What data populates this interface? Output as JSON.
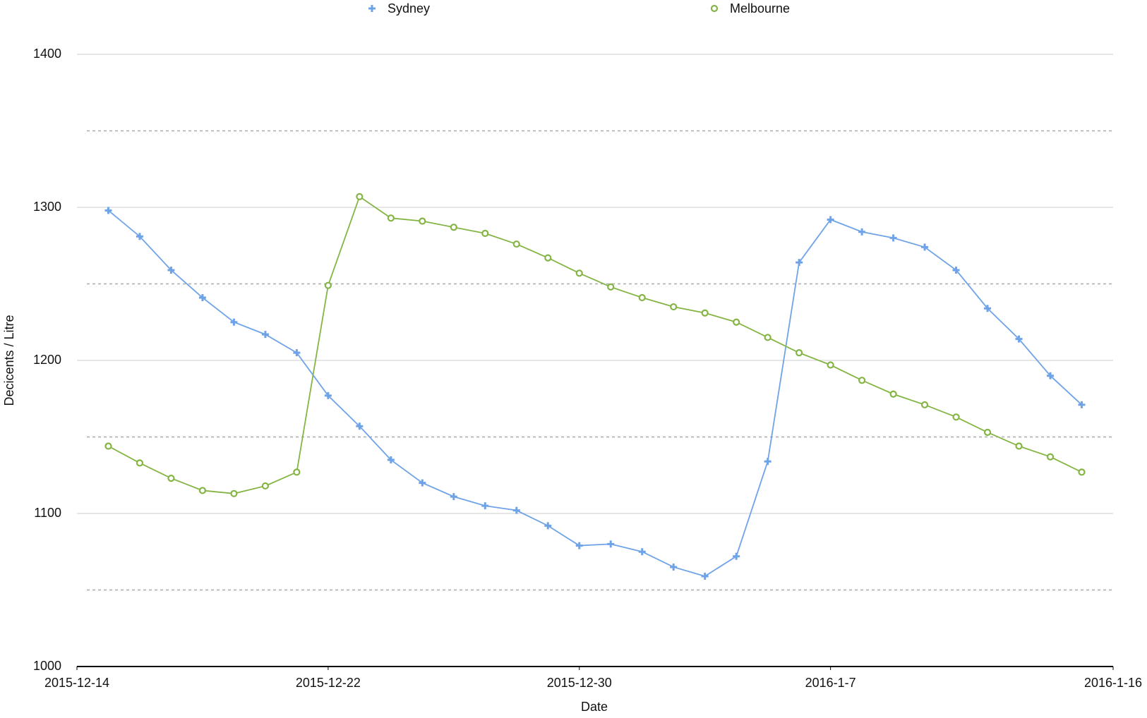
{
  "chart_data": {
    "type": "line",
    "x_label": "Date",
    "y_label": "Decicents / Litre",
    "x": [
      "2015-12-15",
      "2015-12-16",
      "2015-12-17",
      "2015-12-18",
      "2015-12-19",
      "2015-12-20",
      "2015-12-21",
      "2015-12-22",
      "2015-12-23",
      "2015-12-24",
      "2015-12-25",
      "2015-12-26",
      "2015-12-27",
      "2015-12-28",
      "2015-12-29",
      "2015-12-30",
      "2015-12-31",
      "2016-1-1",
      "2016-1-2",
      "2016-1-3",
      "2016-1-4",
      "2016-1-5",
      "2016-1-6",
      "2016-1-7",
      "2016-1-8",
      "2016-1-9",
      "2016-1-10",
      "2016-1-11",
      "2016-1-12",
      "2016-1-13",
      "2016-1-14",
      "2016-1-15"
    ],
    "series": [
      {
        "name": "Sydney",
        "color": "#6fa3e8",
        "marker": "plus",
        "values": [
          1298,
          1281,
          1259,
          1241,
          1225,
          1217,
          1205,
          1177,
          1157,
          1135,
          1120,
          1111,
          1105,
          1102,
          1092,
          1079,
          1080,
          1075,
          1065,
          1059,
          1072,
          1134,
          1264,
          1292,
          1284,
          1280,
          1274,
          1259,
          1234,
          1214,
          1190,
          1171
        ]
      },
      {
        "name": "Melbourne",
        "color": "#84b544",
        "marker": "circle",
        "values": [
          1144,
          1133,
          1123,
          1115,
          1113,
          1118,
          1127,
          1249,
          1307,
          1293,
          1291,
          1287,
          1283,
          1276,
          1267,
          1257,
          1248,
          1241,
          1235,
          1231,
          1225,
          1215,
          1205,
          1197,
          1187,
          1178,
          1171,
          1163,
          1153,
          1144,
          1137,
          1127
        ]
      }
    ],
    "xlim": [
      "2015-12-14",
      "2016-1-16"
    ],
    "xticks": [
      "2015-12-14",
      "2015-12-22",
      "2015-12-30",
      "2016-1-7",
      "2016-1-16"
    ],
    "ylim": [
      1000,
      1400
    ],
    "yticks": [
      1000,
      1100,
      1200,
      1300,
      1400
    ],
    "minor_yticks": [
      1050,
      1150,
      1250,
      1350
    ],
    "grid": true,
    "legend": "top"
  }
}
